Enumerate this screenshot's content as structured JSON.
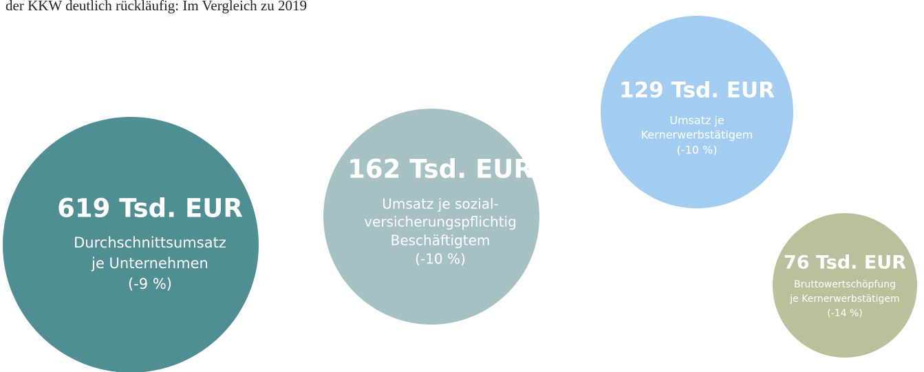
{
  "intro": "der KKW deutlich rückläufig: Im Vergleich zu 2019",
  "bubbles": [
    {
      "value": "619 Tsd. EUR",
      "lines": [
        "Durchschnittsumsatz",
        "je Unternehmen",
        "(-9 %)"
      ]
    },
    {
      "value": "162 Tsd. EUR",
      "lines": [
        "Umsatz je sozial-",
        "versicherungspflichtig",
        "Beschäftigtem",
        "(-10 %)"
      ]
    },
    {
      "value": "129 Tsd. EUR",
      "lines": [
        "Umsatz je",
        "Kernerwerbstätigem",
        "(-10 %)"
      ]
    },
    {
      "value": "76 Tsd. EUR",
      "lines": [
        "Bruttowertschöpfung",
        "je Kernerwerbstätigem",
        "(-14 %)"
      ]
    }
  ]
}
